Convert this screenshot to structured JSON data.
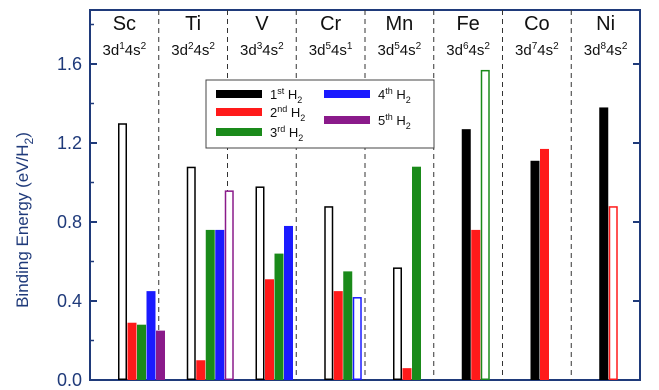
{
  "chart_data": {
    "type": "bar",
    "ylabel_main": "Binding Energy (eV/H",
    "ylabel_sub": "2",
    "ylabel_end": ")",
    "ylim": [
      0.0,
      1.8
    ],
    "yticks": [
      "0.0",
      "0.4",
      "0.8",
      "1.2",
      "1.6"
    ],
    "ytick_values": [
      0.0,
      0.4,
      0.8,
      1.2,
      1.6
    ],
    "grid": false,
    "legend_position": "top-center",
    "categories": [
      {
        "element": "Sc",
        "config": [
          "3d",
          "1",
          "4s",
          "2"
        ]
      },
      {
        "element": "Ti",
        "config": [
          "3d",
          "2",
          "4s",
          "2"
        ]
      },
      {
        "element": "V",
        "config": [
          "3d",
          "3",
          "4s",
          "2"
        ]
      },
      {
        "element": "Cr",
        "config": [
          "3d",
          "5",
          "4s",
          "1"
        ]
      },
      {
        "element": "Mn",
        "config": [
          "3d",
          "5",
          "4s",
          "2"
        ]
      },
      {
        "element": "Fe",
        "config": [
          "3d",
          "6",
          "4s",
          "2"
        ]
      },
      {
        "element": "Co",
        "config": [
          "3d",
          "7",
          "4s",
          "2"
        ]
      },
      {
        "element": "Ni",
        "config": [
          "3d",
          "8",
          "4s",
          "2"
        ]
      }
    ],
    "series": [
      {
        "name": "1st H2",
        "label_pre": "1",
        "label_sup": "st",
        "label_mid": " H",
        "label_sub": "2",
        "color": "#000000",
        "values": [
          1.3,
          1.08,
          0.98,
          0.88,
          0.57,
          1.27,
          1.11,
          1.38
        ],
        "hollow": [
          true,
          true,
          true,
          true,
          true,
          false,
          false,
          false
        ]
      },
      {
        "name": "2nd H2",
        "label_pre": "2",
        "label_sup": "nd",
        "label_mid": " H",
        "label_sub": "2",
        "color": "#ff1a1a",
        "values": [
          0.29,
          0.1,
          0.51,
          0.45,
          0.06,
          0.76,
          1.17,
          0.88
        ],
        "hollow": [
          false,
          false,
          false,
          false,
          false,
          false,
          false,
          true
        ]
      },
      {
        "name": "3rd H2",
        "label_pre": "3",
        "label_sup": "rd",
        "label_mid": " H",
        "label_sub": "2",
        "color": "#1a8a1a",
        "values": [
          0.28,
          0.76,
          0.64,
          0.55,
          1.08,
          1.57,
          null,
          null
        ],
        "hollow": [
          false,
          false,
          false,
          false,
          false,
          true,
          false,
          false
        ]
      },
      {
        "name": "4th H2",
        "label_pre": "4",
        "label_sup": "th",
        "label_mid": " H",
        "label_sub": "2",
        "color": "#1a1aff",
        "values": [
          0.45,
          0.76,
          0.78,
          0.42,
          null,
          null,
          null,
          null
        ],
        "hollow": [
          false,
          false,
          false,
          true,
          false,
          false,
          false,
          false
        ]
      },
      {
        "name": "5th H2",
        "label_pre": "5",
        "label_sup": "th",
        "label_mid": " H",
        "label_sub": "2",
        "color": "#8a1a8a",
        "values": [
          0.25,
          0.96,
          null,
          null,
          null,
          null,
          null,
          null
        ],
        "hollow": [
          false,
          true,
          false,
          false,
          false,
          false,
          false,
          false
        ]
      }
    ]
  }
}
